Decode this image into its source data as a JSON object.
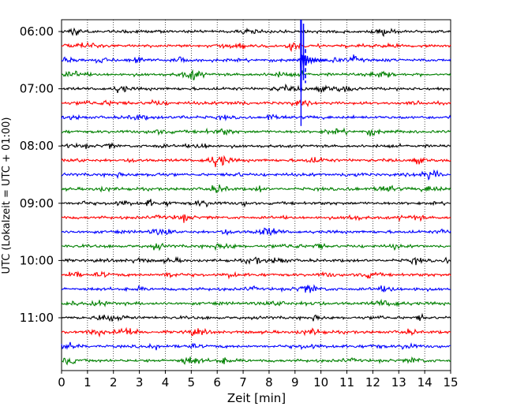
{
  "chart_data": {
    "type": "line",
    "subtype": "helicorder",
    "title": "",
    "xlabel": "Zeit  [min]",
    "ylabel": "UTC (Lokalzeit = UTC + 01:00)",
    "xlim": [
      0,
      15
    ],
    "x_ticks": [
      "0",
      "1",
      "2",
      "3",
      "4",
      "5",
      "6",
      "7",
      "8",
      "9",
      "10",
      "11",
      "12",
      "13",
      "14",
      "15"
    ],
    "y_tick_labels": [
      "06:00",
      "07:00",
      "08:00",
      "09:00",
      "10:00",
      "11:00"
    ],
    "trace_interval_minutes": 15,
    "start_time": "06:00",
    "grid": "vertical dotted at each minute",
    "line_colors": [
      "#000000",
      "#ff0000",
      "#0000ff",
      "#008000"
    ],
    "trace_count": 24,
    "event": {
      "trace_start": "06:30",
      "onset_minute": 9.2,
      "peak_minute": 9.25,
      "decay_minutes": 1.0,
      "color": "blue",
      "note": "large-amplitude spike spanning several traces"
    }
  }
}
